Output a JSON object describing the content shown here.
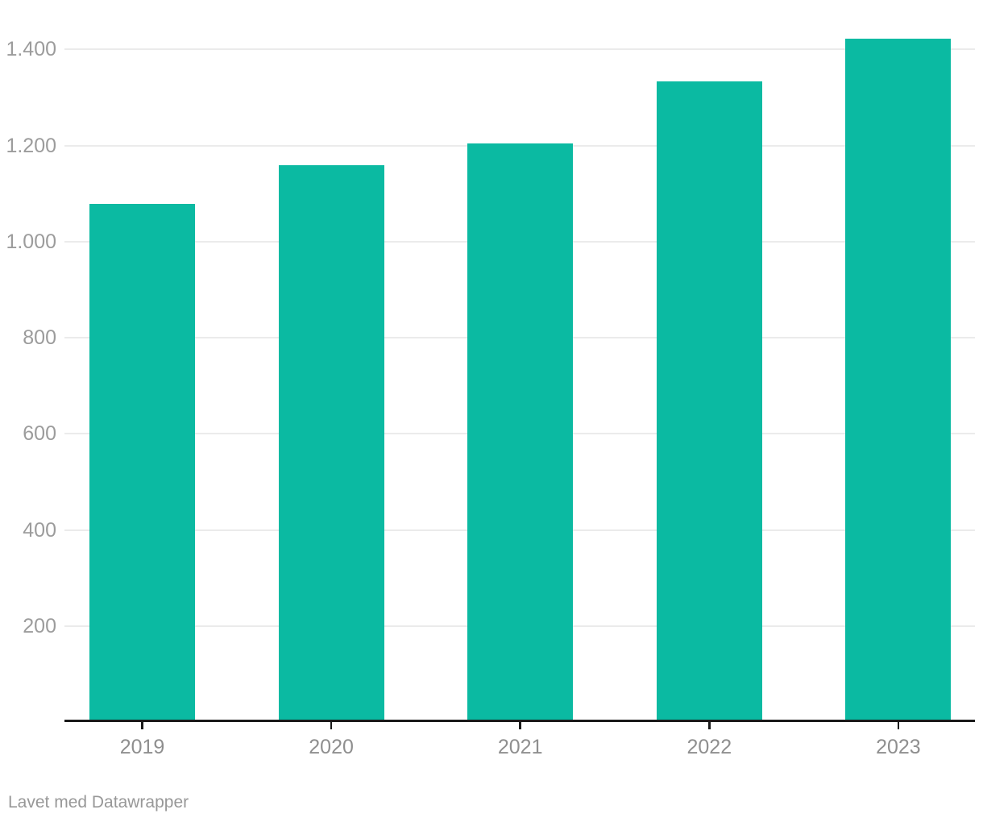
{
  "chart_data": {
    "type": "bar",
    "title": "",
    "xlabel": "",
    "ylabel": "",
    "categories": [
      "2019",
      "2020",
      "2021",
      "2022",
      "2023"
    ],
    "values": [
      1078,
      1159,
      1204,
      1333,
      1422
    ],
    "ylim": [
      0,
      1500
    ],
    "yticks": [
      {
        "value": 200,
        "label": "200"
      },
      {
        "value": 400,
        "label": "400"
      },
      {
        "value": 600,
        "label": "600"
      },
      {
        "value": 800,
        "label": "800"
      },
      {
        "value": 1000,
        "label": "1.000"
      },
      {
        "value": 1200,
        "label": "1.200"
      },
      {
        "value": 1400,
        "label": "1.400"
      }
    ],
    "grid": true,
    "legend": "none",
    "bar_color": "#0BBAA2"
  },
  "colors": {
    "bar": "#0BBAA2",
    "gridline": "#EBEBEB",
    "axis_line": "#1A1A1A",
    "y_tick_label": "#9C9C9C",
    "x_tick_label": "#8F8F8F",
    "attribution": "#989898",
    "background": "#FFFFFF"
  },
  "footer": {
    "attribution": "Lavet med Datawrapper"
  }
}
